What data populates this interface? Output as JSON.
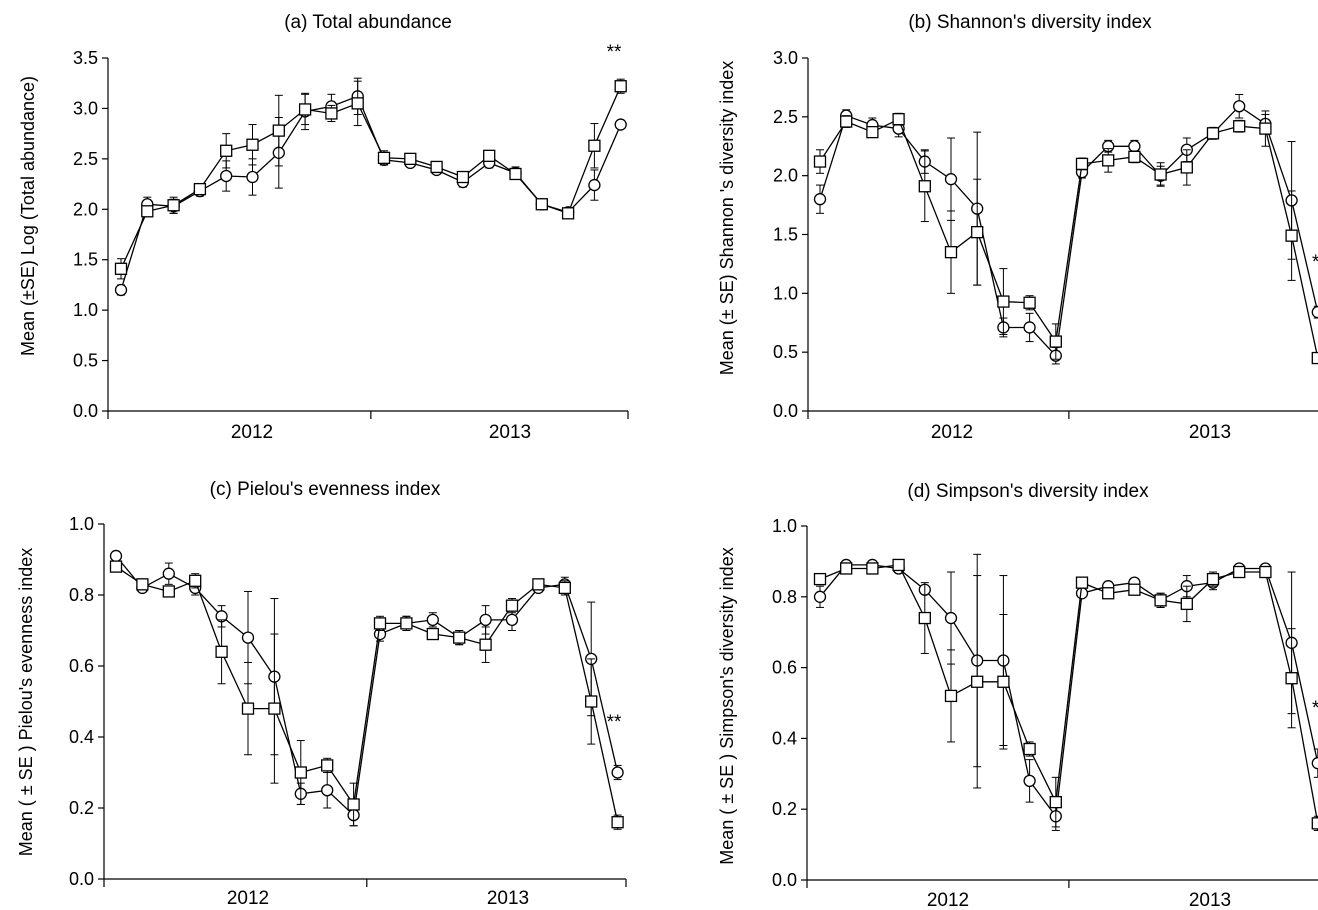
{
  "charts": [
    {
      "type": "line",
      "title": "(a) Total abundance",
      "ylabel": "Mean (±SE) Log (Total abundance)",
      "ylim": [
        0,
        3.5
      ],
      "yticks": [
        "0.0",
        "0.5",
        "1.0",
        "1.5",
        "2.0",
        "2.5",
        "3.0",
        "3.5"
      ],
      "year_labels": [
        "2012",
        "2013"
      ],
      "significance": "**",
      "series": [
        {
          "marker": "circle",
          "values": [
            1.2,
            2.05,
            2.03,
            2.18,
            2.33,
            2.32,
            2.56,
            2.97,
            3.02,
            3.12,
            2.49,
            2.46,
            2.39,
            2.27,
            2.46,
            2.36,
            2.05,
            1.97,
            2.24,
            2.84
          ],
          "se": [
            0.05,
            0.07,
            0.07,
            0.05,
            0.15,
            0.18,
            0.35,
            0.18,
            0.12,
            0.18,
            0.05,
            0.04,
            0.04,
            0.05,
            0.05,
            0.06,
            0.04,
            0.04,
            0.15,
            0.02
          ]
        },
        {
          "marker": "square",
          "values": [
            1.41,
            1.98,
            2.04,
            2.2,
            2.58,
            2.64,
            2.78,
            2.99,
            2.95,
            3.05,
            2.51,
            2.5,
            2.42,
            2.32,
            2.53,
            2.35,
            2.05,
            1.96,
            2.63,
            3.22
          ],
          "se": [
            0.1,
            0.05,
            0.08,
            0.05,
            0.17,
            0.2,
            0.35,
            0.15,
            0.08,
            0.22,
            0.07,
            0.04,
            0.04,
            0.05,
            0.05,
            0.05,
            0.04,
            0.04,
            0.22,
            0.07
          ]
        }
      ]
    },
    {
      "type": "line",
      "title": "(b) Shannon's diversity index",
      "ylabel": "Mean (± SE) Shannon 's diversity index",
      "ylim": [
        0,
        3.0
      ],
      "yticks": [
        "0.0",
        "0.5",
        "1.0",
        "1.5",
        "2.0",
        "2.5",
        "3.0"
      ],
      "year_labels": [
        "2012",
        "2013"
      ],
      "significance": "**",
      "series": [
        {
          "marker": "circle",
          "values": [
            1.8,
            2.51,
            2.43,
            2.4,
            2.12,
            1.97,
            1.72,
            0.71,
            0.71,
            0.47,
            2.03,
            2.25,
            2.25,
            2.0,
            2.22,
            2.36,
            2.59,
            2.44,
            1.79,
            0.84
          ],
          "se": [
            0.12,
            0.05,
            0.06,
            0.07,
            0.1,
            0.35,
            0.65,
            0.08,
            0.12,
            0.07,
            0.05,
            0.05,
            0.05,
            0.08,
            0.1,
            0.05,
            0.1,
            0.08,
            0.5,
            0.05
          ]
        },
        {
          "marker": "square",
          "values": [
            2.12,
            2.46,
            2.37,
            2.48,
            1.91,
            1.35,
            1.52,
            0.93,
            0.92,
            0.59,
            2.1,
            2.13,
            2.16,
            2.01,
            2.07,
            2.36,
            2.42,
            2.4,
            1.49,
            0.45
          ],
          "se": [
            0.1,
            0.05,
            0.04,
            0.05,
            0.3,
            0.35,
            0.45,
            0.28,
            0.06,
            0.15,
            0.05,
            0.1,
            0.05,
            0.1,
            0.15,
            0.05,
            0.05,
            0.15,
            0.38,
            0.04
          ]
        }
      ]
    },
    {
      "type": "line",
      "title": "(c) Pielou's evenness index",
      "ylabel": "Mean ( ± SE ) Pielou's evenness index",
      "ylim": [
        0,
        1.0
      ],
      "yticks": [
        "0.0",
        "0.2",
        "0.4",
        "0.6",
        "0.8",
        "1.0"
      ],
      "year_labels": [
        "2012",
        "2013"
      ],
      "significance": "**",
      "series": [
        {
          "marker": "circle",
          "values": [
            0.91,
            0.82,
            0.86,
            0.82,
            0.74,
            0.68,
            0.57,
            0.24,
            0.25,
            0.18,
            0.69,
            0.72,
            0.73,
            0.68,
            0.73,
            0.73,
            0.82,
            0.83,
            0.62,
            0.3
          ],
          "se": [
            0.01,
            0.01,
            0.03,
            0.02,
            0.03,
            0.13,
            0.22,
            0.03,
            0.05,
            0.03,
            0.02,
            0.02,
            0.02,
            0.02,
            0.04,
            0.03,
            0.01,
            0.02,
            0.16,
            0.02
          ]
        },
        {
          "marker": "square",
          "values": [
            0.88,
            0.83,
            0.81,
            0.84,
            0.64,
            0.48,
            0.48,
            0.3,
            0.32,
            0.21,
            0.72,
            0.72,
            0.69,
            0.68,
            0.66,
            0.77,
            0.83,
            0.82,
            0.5,
            0.16
          ],
          "se": [
            0.01,
            0.01,
            0.01,
            0.02,
            0.09,
            0.13,
            0.21,
            0.09,
            0.02,
            0.06,
            0.02,
            0.02,
            0.01,
            0.02,
            0.05,
            0.02,
            0.01,
            0.02,
            0.12,
            0.02
          ]
        }
      ]
    },
    {
      "type": "line",
      "title": "(d) Simpson's diversity index",
      "ylabel": "Mean ( ± SE ) Simpson's diversity index",
      "ylim": [
        0,
        1.0
      ],
      "yticks": [
        "0.0",
        "0.2",
        "0.4",
        "0.6",
        "0.8",
        "1.0"
      ],
      "year_labels": [
        "2012",
        "2013"
      ],
      "significance": "**",
      "series": [
        {
          "marker": "circle",
          "values": [
            0.8,
            0.89,
            0.89,
            0.88,
            0.82,
            0.74,
            0.62,
            0.62,
            0.28,
            0.18,
            0.81,
            0.83,
            0.84,
            0.79,
            0.83,
            0.84,
            0.88,
            0.88,
            0.67,
            0.33
          ],
          "se": [
            0.03,
            0.01,
            0.01,
            0.01,
            0.01,
            0.13,
            0.3,
            0.24,
            0.06,
            0.04,
            0.01,
            0.01,
            0.01,
            0.02,
            0.03,
            0.02,
            0.01,
            0.01,
            0.2,
            0.04
          ]
        },
        {
          "marker": "square",
          "values": [
            0.85,
            0.88,
            0.88,
            0.89,
            0.74,
            0.52,
            0.56,
            0.56,
            0.37,
            0.22,
            0.84,
            0.81,
            0.82,
            0.79,
            0.78,
            0.85,
            0.87,
            0.87,
            0.57,
            0.16
          ],
          "se": [
            0.01,
            0.01,
            0.01,
            0.01,
            0.1,
            0.13,
            0.3,
            0.19,
            0.02,
            0.07,
            0.01,
            0.01,
            0.01,
            0.02,
            0.05,
            0.02,
            0.01,
            0.01,
            0.14,
            0.02
          ]
        }
      ]
    }
  ]
}
